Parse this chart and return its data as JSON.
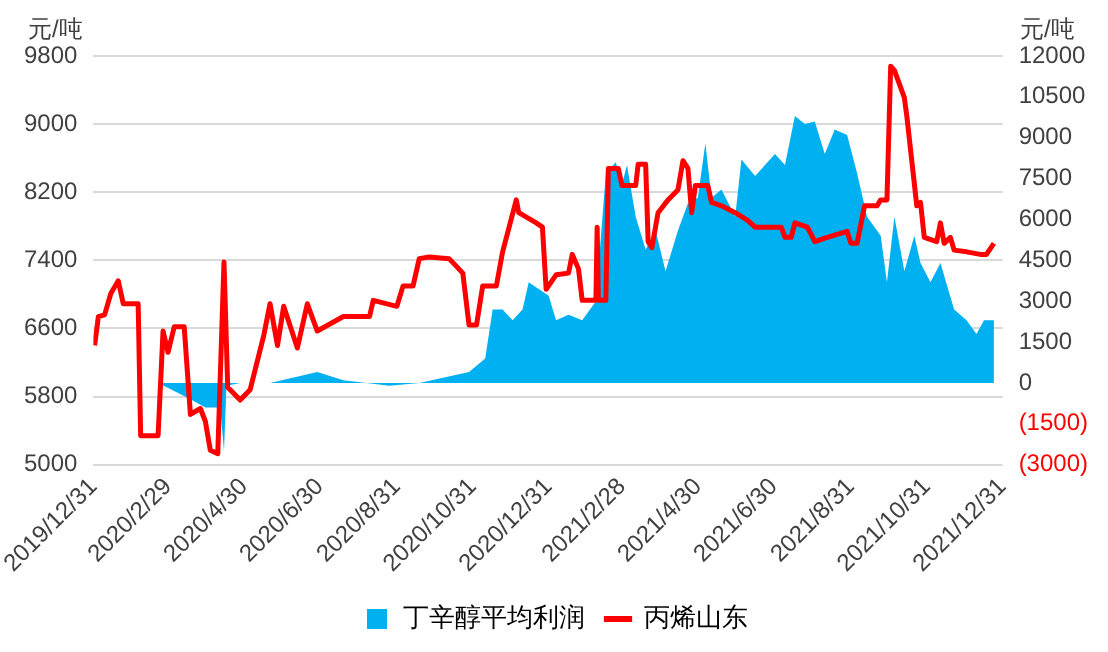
{
  "chart_data": {
    "type": "line",
    "ylabel": "元/吨",
    "y2label": "元/吨",
    "xlim": [
      "2019-12-31",
      "2021-12-31"
    ],
    "xticks": [
      {
        "value": "2019-12-31",
        "label": "2019/12/31"
      },
      {
        "value": "2020-02-29",
        "label": "2020/2/29"
      },
      {
        "value": "2020-04-30",
        "label": "2020/4/30"
      },
      {
        "value": "2020-06-30",
        "label": "2020/6/30"
      },
      {
        "value": "2020-08-31",
        "label": "2020/8/31"
      },
      {
        "value": "2020-10-31",
        "label": "2020/10/31"
      },
      {
        "value": "2020-12-31",
        "label": "2020/12/31"
      },
      {
        "value": "2021-02-28",
        "label": "2021/2/28"
      },
      {
        "value": "2021-04-30",
        "label": "2021/4/30"
      },
      {
        "value": "2021-06-30",
        "label": "2021/6/30"
      },
      {
        "value": "2021-08-31",
        "label": "2021/8/31"
      },
      {
        "value": "2021-10-31",
        "label": "2021/10/31"
      },
      {
        "value": "2021-12-31",
        "label": "2021/12/31"
      }
    ],
    "ylim": [
      5000,
      9800
    ],
    "yticks": [
      5000,
      5800,
      6600,
      7400,
      8200,
      9000,
      9800
    ],
    "y2lim": [
      -3000,
      12000
    ],
    "y2ticks": [
      {
        "value": -3000,
        "label": "(3000)"
      },
      {
        "value": -1500,
        "label": "(1500)"
      },
      0,
      1500,
      3000,
      4500,
      6000,
      7500,
      9000,
      10500,
      12000
    ],
    "grid": "y",
    "legend": "bottom",
    "marker": "none",
    "series": [
      {
        "name": "丁辛醇平均利润",
        "type": "area",
        "axis": "y2",
        "color": "#00b0f0",
        "x": [
          "2020-01-01",
          "2020-02-21",
          "2020-03-01",
          "2020-03-18",
          "2020-03-30",
          "2020-04-11",
          "2020-04-14",
          "2020-04-16",
          "2020-04-27",
          "2020-05-21",
          "2020-06-28",
          "2020-07-19",
          "2020-08-25",
          "2020-09-18",
          "2020-10-08",
          "2020-10-28",
          "2020-11-10",
          "2020-11-16",
          "2020-11-24",
          "2020-12-02",
          "2020-12-10",
          "2020-12-15",
          "2020-12-31",
          "2021-01-06",
          "2021-01-16",
          "2021-01-27",
          "2021-02-07",
          "2021-02-15",
          "2021-02-23",
          "2021-02-28",
          "2021-03-04",
          "2021-03-11",
          "2021-03-19",
          "2021-03-27",
          "2021-04-04",
          "2021-04-14",
          "2021-04-22",
          "2021-04-30",
          "2021-05-06",
          "2021-05-11",
          "2021-05-19",
          "2021-05-30",
          "2021-06-04",
          "2021-06-15",
          "2021-07-01",
          "2021-07-09",
          "2021-07-17",
          "2021-07-25",
          "2021-08-02",
          "2021-08-10",
          "2021-08-18",
          "2021-08-28",
          "2021-09-05",
          "2021-09-13",
          "2021-09-24",
          "2021-09-29",
          "2021-10-05",
          "2021-10-13",
          "2021-10-21",
          "2021-10-26",
          "2021-11-03",
          "2021-11-11",
          "2021-11-22",
          "2021-12-02",
          "2021-12-10",
          "2021-12-16",
          "2021-12-24"
        ],
        "values": [
          0,
          0,
          -200,
          -600,
          -900,
          -900,
          -2500,
          -100,
          0,
          0,
          400,
          100,
          -100,
          0,
          200,
          400,
          900,
          2700,
          2700,
          2300,
          2700,
          3700,
          3200,
          2300,
          2500,
          2300,
          3000,
          7700,
          8100,
          7300,
          8000,
          6100,
          4900,
          5600,
          4100,
          5600,
          6600,
          6800,
          8800,
          6800,
          7100,
          6100,
          8200,
          7600,
          8400,
          8000,
          9800,
          9500,
          9600,
          8400,
          9300,
          9100,
          7700,
          6100,
          5400,
          3700,
          6100,
          4100,
          5400,
          4400,
          3700,
          4400,
          2700,
          2300,
          1800,
          2300,
          2300
        ]
      },
      {
        "name": "丙烯山东",
        "color": "#ff0000",
        "x": [
          "2020-01-01",
          "2020-01-04",
          "2020-01-09",
          "2020-01-14",
          "2020-01-20",
          "2020-01-24",
          "2020-02-05",
          "2020-02-07",
          "2020-02-21",
          "2020-02-25",
          "2020-02-29",
          "2020-03-05",
          "2020-03-13",
          "2020-03-18",
          "2020-03-26",
          "2020-03-30",
          "2020-04-03",
          "2020-04-09",
          "2020-04-14",
          "2020-04-17",
          "2020-04-27",
          "2020-05-05",
          "2020-05-16",
          "2020-05-21",
          "2020-05-27",
          "2020-06-01",
          "2020-06-12",
          "2020-06-20",
          "2020-06-28",
          "2020-07-19",
          "2020-08-09",
          "2020-08-12",
          "2020-08-31",
          "2020-09-05",
          "2020-09-13",
          "2020-09-18",
          "2020-09-26",
          "2020-10-12",
          "2020-10-23",
          "2020-10-28",
          "2020-11-03",
          "2020-11-08",
          "2020-11-19",
          "2020-11-24",
          "2020-12-05",
          "2020-12-07",
          "2020-12-21",
          "2020-12-26",
          "2020-12-29",
          "2021-01-06",
          "2021-01-16",
          "2021-01-19",
          "2021-01-24",
          "2021-01-27",
          "2021-02-07",
          "2021-02-08",
          "2021-02-09",
          "2021-02-15",
          "2021-02-17",
          "2021-02-25",
          "2021-02-28",
          "2021-03-11",
          "2021-03-13",
          "2021-03-19",
          "2021-03-21",
          "2021-03-24",
          "2021-03-29",
          "2021-04-06",
          "2021-04-14",
          "2021-04-18",
          "2021-04-22",
          "2021-04-25",
          "2021-04-28",
          "2021-05-08",
          "2021-05-11",
          "2021-05-19",
          "2021-05-30",
          "2021-06-09",
          "2021-06-15",
          "2021-07-06",
          "2021-07-09",
          "2021-07-14",
          "2021-07-17",
          "2021-07-27",
          "2021-08-02",
          "2021-08-12",
          "2021-08-28",
          "2021-08-31",
          "2021-09-05",
          "2021-09-11",
          "2021-09-21",
          "2021-09-24",
          "2021-09-29",
          "2021-10-02",
          "2021-10-05",
          "2021-10-13",
          "2021-10-15",
          "2021-10-23",
          "2021-10-26",
          "2021-10-29",
          "2021-11-08",
          "2021-11-11",
          "2021-11-14",
          "2021-11-19",
          "2021-11-22",
          "2021-12-02",
          "2021-12-13",
          "2021-12-18",
          "2021-12-24"
        ],
        "values": [
          6400,
          6740,
          6760,
          7010,
          7160,
          6890,
          6890,
          5340,
          5340,
          6570,
          6320,
          6620,
          6620,
          5590,
          5660,
          5510,
          5170,
          5130,
          7380,
          5910,
          5760,
          5880,
          6520,
          6890,
          6400,
          6860,
          6370,
          6890,
          6570,
          6740,
          6740,
          6930,
          6860,
          7100,
          7100,
          7420,
          7440,
          7420,
          7250,
          6640,
          6640,
          7100,
          7100,
          7500,
          8110,
          7960,
          7840,
          7790,
          7060,
          7230,
          7250,
          7470,
          7300,
          6930,
          6930,
          7790,
          6930,
          6930,
          8480,
          8480,
          8280,
          8280,
          8530,
          8530,
          7620,
          7550,
          7960,
          8110,
          8230,
          8570,
          8480,
          7960,
          8280,
          8280,
          8080,
          8040,
          7960,
          7870,
          7790,
          7790,
          7670,
          7670,
          7840,
          7790,
          7620,
          7670,
          7740,
          7600,
          7600,
          8040,
          8040,
          8110,
          8110,
          9680,
          9630,
          9310,
          9090,
          8040,
          8080,
          7670,
          7620,
          7840,
          7600,
          7670,
          7520,
          7500,
          7470,
          7470,
          7600
        ]
      }
    ]
  }
}
